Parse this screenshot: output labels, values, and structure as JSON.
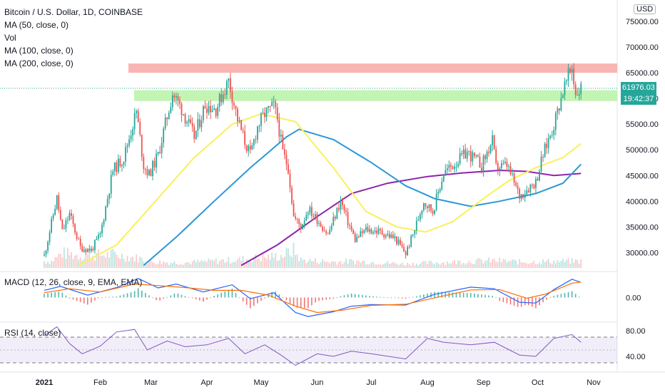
{
  "chart_data": {
    "type": "candlestick",
    "title": "Bitcoin / U.S. Dollar, 1D, COINBASE",
    "currency": "USD",
    "last_price": "61976.03",
    "countdown": "19:42:37",
    "indicators": {
      "ma50": "MA (50, close, 0)",
      "vol": "Vol",
      "ma100": "MA (100, close, 0)",
      "ma200": "MA (200, close, 0)",
      "macd": "MACD (12, 26, close, 9, EMA, EMA)",
      "rsi": "RSI (14, close)"
    },
    "x_ticks": [
      "2021",
      "Feb",
      "Mar",
      "Apr",
      "May",
      "Jun",
      "Jul",
      "Aug",
      "Sep",
      "Oct",
      "Nov"
    ],
    "price_ticks": [
      "75000.00",
      "70000.00",
      "65000.00",
      "60000.00",
      "55000.00",
      "50000.00",
      "45000.00",
      "40000.00",
      "35000.00",
      "30000.00"
    ],
    "macd_ticks": [
      "0.00"
    ],
    "rsi_ticks": [
      "80.00",
      "40.00"
    ],
    "price_range": [
      27000,
      77500
    ],
    "resistance_zone": [
      65000,
      66800
    ],
    "support_zone": [
      59500,
      61600
    ],
    "close_path": [
      [
        "2021-01-01",
        29400
      ],
      [
        "2021-01-08",
        40600
      ],
      [
        "2021-01-11",
        34000
      ],
      [
        "2021-01-15",
        37500
      ],
      [
        "2021-01-21",
        31000
      ],
      [
        "2021-01-27",
        30500
      ],
      [
        "2021-02-01",
        33500
      ],
      [
        "2021-02-08",
        46000
      ],
      [
        "2021-02-14",
        48500
      ],
      [
        "2021-02-21",
        57500
      ],
      [
        "2021-02-25",
        47000
      ],
      [
        "2021-02-28",
        45200
      ],
      [
        "2021-03-05",
        49000
      ],
      [
        "2021-03-13",
        61000
      ],
      [
        "2021-03-18",
        58000
      ],
      [
        "2021-03-25",
        52500
      ],
      [
        "2021-03-31",
        58800
      ],
      [
        "2021-04-06",
        58000
      ],
      [
        "2021-04-13",
        63500
      ],
      [
        "2021-04-18",
        56000
      ],
      [
        "2021-04-22",
        51500
      ],
      [
        "2021-04-25",
        49000
      ],
      [
        "2021-04-29",
        54500
      ],
      [
        "2021-05-03",
        57000
      ],
      [
        "2021-05-08",
        58500
      ],
      [
        "2021-05-10",
        56000
      ],
      [
        "2021-05-13",
        49500
      ],
      [
        "2021-05-16",
        46500
      ],
      [
        "2021-05-19",
        37000
      ],
      [
        "2021-05-23",
        35000
      ],
      [
        "2021-05-27",
        38500
      ],
      [
        "2021-06-01",
        36500
      ],
      [
        "2021-06-07",
        33500
      ],
      [
        "2021-06-14",
        40000
      ],
      [
        "2021-06-18",
        36000
      ],
      [
        "2021-06-22",
        32500
      ],
      [
        "2021-06-28",
        34500
      ],
      [
        "2021-07-06",
        34000
      ],
      [
        "2021-07-14",
        32800
      ],
      [
        "2021-07-20",
        29800
      ],
      [
        "2021-07-24",
        33500
      ],
      [
        "2021-07-30",
        40000
      ],
      [
        "2021-08-04",
        38000
      ],
      [
        "2021-08-10",
        45500
      ],
      [
        "2021-08-15",
        47000
      ],
      [
        "2021-08-23",
        49500
      ],
      [
        "2021-08-31",
        47000
      ],
      [
        "2021-09-06",
        51700
      ],
      [
        "2021-09-08",
        46500
      ],
      [
        "2021-09-14",
        47000
      ],
      [
        "2021-09-21",
        41000
      ],
      [
        "2021-09-27",
        43000
      ],
      [
        "2021-09-30",
        43800
      ],
      [
        "2021-10-04",
        49000
      ],
      [
        "2021-10-10",
        55000
      ],
      [
        "2021-10-15",
        61500
      ],
      [
        "2021-10-20",
        66000
      ],
      [
        "2021-10-22",
        61000
      ],
      [
        "2021-10-25",
        62000
      ]
    ],
    "ma50": [
      [
        "2021-01-20",
        27500
      ],
      [
        "2021-02-10",
        31500
      ],
      [
        "2021-03-01",
        39000
      ],
      [
        "2021-03-25",
        48500
      ],
      [
        "2021-04-15",
        55000
      ],
      [
        "2021-05-01",
        57000
      ],
      [
        "2021-05-20",
        55500
      ],
      [
        "2021-06-10",
        46500
      ],
      [
        "2021-06-28",
        38000
      ],
      [
        "2021-07-15",
        35000
      ],
      [
        "2021-07-31",
        34000
      ],
      [
        "2021-08-15",
        36000
      ],
      [
        "2021-09-01",
        40500
      ],
      [
        "2021-09-15",
        44000
      ],
      [
        "2021-09-30",
        46500
      ],
      [
        "2021-10-15",
        48500
      ],
      [
        "2021-10-25",
        51200
      ]
    ],
    "ma100": [
      [
        "2021-02-25",
        27500
      ],
      [
        "2021-03-15",
        33000
      ],
      [
        "2021-04-05",
        40000
      ],
      [
        "2021-04-25",
        46500
      ],
      [
        "2021-05-15",
        52500
      ],
      [
        "2021-05-22",
        54000
      ],
      [
        "2021-06-10",
        52000
      ],
      [
        "2021-07-01",
        47500
      ],
      [
        "2021-07-20",
        43000
      ],
      [
        "2021-08-05",
        40500
      ],
      [
        "2021-08-25",
        39000
      ],
      [
        "2021-09-10",
        40000
      ],
      [
        "2021-09-30",
        41500
      ],
      [
        "2021-10-15",
        43500
      ],
      [
        "2021-10-25",
        47200
      ]
    ],
    "ma200": [
      [
        "2021-04-20",
        27500
      ],
      [
        "2021-05-10",
        31500
      ],
      [
        "2021-06-01",
        37000
      ],
      [
        "2021-06-20",
        41500
      ],
      [
        "2021-07-10",
        43500
      ],
      [
        "2021-08-01",
        44800
      ],
      [
        "2021-08-20",
        45500
      ],
      [
        "2021-09-10",
        46000
      ],
      [
        "2021-09-25",
        45800
      ],
      [
        "2021-10-10",
        45000
      ],
      [
        "2021-10-25",
        45400
      ]
    ],
    "volume": [
      [
        "2021-01-05",
        10
      ],
      [
        "2021-01-11",
        22
      ],
      [
        "2021-01-21",
        18
      ],
      [
        "2021-02-08",
        20
      ],
      [
        "2021-02-23",
        14
      ],
      [
        "2021-03-01",
        9
      ],
      [
        "2021-03-20",
        8
      ],
      [
        "2021-04-18",
        12
      ],
      [
        "2021-05-12",
        18
      ],
      [
        "2021-05-19",
        26
      ],
      [
        "2021-05-23",
        12
      ],
      [
        "2021-06-08",
        9
      ],
      [
        "2021-06-22",
        10
      ],
      [
        "2021-07-20",
        6
      ],
      [
        "2021-08-05",
        8
      ],
      [
        "2021-09-07",
        11
      ],
      [
        "2021-09-21",
        9
      ],
      [
        "2021-10-20",
        10
      ]
    ],
    "macd_range": [
      -5500,
      6000
    ],
    "macd_line": [
      [
        "2021-01-01",
        1800
      ],
      [
        "2021-01-10",
        2800
      ],
      [
        "2021-01-25",
        600
      ],
      [
        "2021-02-10",
        2500
      ],
      [
        "2021-02-22",
        4800
      ],
      [
        "2021-03-05",
        2400
      ],
      [
        "2021-03-15",
        3400
      ],
      [
        "2021-03-30",
        1400
      ],
      [
        "2021-04-15",
        3200
      ],
      [
        "2021-04-25",
        -300
      ],
      [
        "2021-05-08",
        1200
      ],
      [
        "2021-05-20",
        -3800
      ],
      [
        "2021-05-27",
        -4800
      ],
      [
        "2021-06-10",
        -3600
      ],
      [
        "2021-06-20",
        -2200
      ],
      [
        "2021-07-01",
        -1800
      ],
      [
        "2021-07-20",
        -1900
      ],
      [
        "2021-08-05",
        800
      ],
      [
        "2021-08-25",
        2600
      ],
      [
        "2021-09-07",
        2200
      ],
      [
        "2021-09-21",
        -1200
      ],
      [
        "2021-09-30",
        -1400
      ],
      [
        "2021-10-10",
        2000
      ],
      [
        "2021-10-20",
        4600
      ],
      [
        "2021-10-25",
        3800
      ]
    ],
    "signal_line": [
      [
        "2021-01-01",
        1200
      ],
      [
        "2021-01-15",
        2200
      ],
      [
        "2021-02-01",
        1400
      ],
      [
        "2021-02-20",
        3400
      ],
      [
        "2021-03-05",
        3000
      ],
      [
        "2021-03-20",
        2500
      ],
      [
        "2021-04-05",
        1800
      ],
      [
        "2021-04-20",
        1800
      ],
      [
        "2021-05-05",
        600
      ],
      [
        "2021-05-20",
        -2200
      ],
      [
        "2021-06-01",
        -3800
      ],
      [
        "2021-06-15",
        -3200
      ],
      [
        "2021-07-01",
        -2000
      ],
      [
        "2021-07-20",
        -1700
      ],
      [
        "2021-08-05",
        -100
      ],
      [
        "2021-08-25",
        1900
      ],
      [
        "2021-09-10",
        2000
      ],
      [
        "2021-09-25",
        -200
      ],
      [
        "2021-10-05",
        800
      ],
      [
        "2021-10-20",
        3600
      ],
      [
        "2021-10-25",
        3900
      ]
    ],
    "rsi_range": [
      20,
      90
    ],
    "rsi_levels": [
      70,
      30
    ],
    "rsi_line": [
      [
        "2021-01-01",
        72
      ],
      [
        "2021-01-08",
        86
      ],
      [
        "2021-01-15",
        60
      ],
      [
        "2021-01-22",
        44
      ],
      [
        "2021-02-01",
        56
      ],
      [
        "2021-02-10",
        78
      ],
      [
        "2021-02-20",
        82
      ],
      [
        "2021-02-27",
        50
      ],
      [
        "2021-03-10",
        64
      ],
      [
        "2021-03-20",
        55
      ],
      [
        "2021-04-01",
        58
      ],
      [
        "2021-04-13",
        68
      ],
      [
        "2021-04-22",
        44
      ],
      [
        "2021-05-03",
        58
      ],
      [
        "2021-05-12",
        42
      ],
      [
        "2021-05-20",
        26
      ],
      [
        "2021-06-01",
        44
      ],
      [
        "2021-06-10",
        40
      ],
      [
        "2021-06-20",
        48
      ],
      [
        "2021-07-01",
        44
      ],
      [
        "2021-07-20",
        36
      ],
      [
        "2021-08-01",
        68
      ],
      [
        "2021-08-10",
        62
      ],
      [
        "2021-08-25",
        58
      ],
      [
        "2021-09-07",
        62
      ],
      [
        "2021-09-21",
        42
      ],
      [
        "2021-09-30",
        40
      ],
      [
        "2021-10-10",
        68
      ],
      [
        "2021-10-20",
        74
      ],
      [
        "2021-10-25",
        62
      ]
    ]
  },
  "colors": {
    "up": "#26a69a",
    "down": "#ef5350",
    "ma50": "#fbef5a",
    "ma100": "#2b97d8",
    "ma200": "#8e24aa",
    "resistance": "#f8a8a5",
    "support": "#b7f2a6",
    "macd": "#2962ff",
    "signal": "#ff6d00",
    "rsi": "#7e57c2"
  }
}
